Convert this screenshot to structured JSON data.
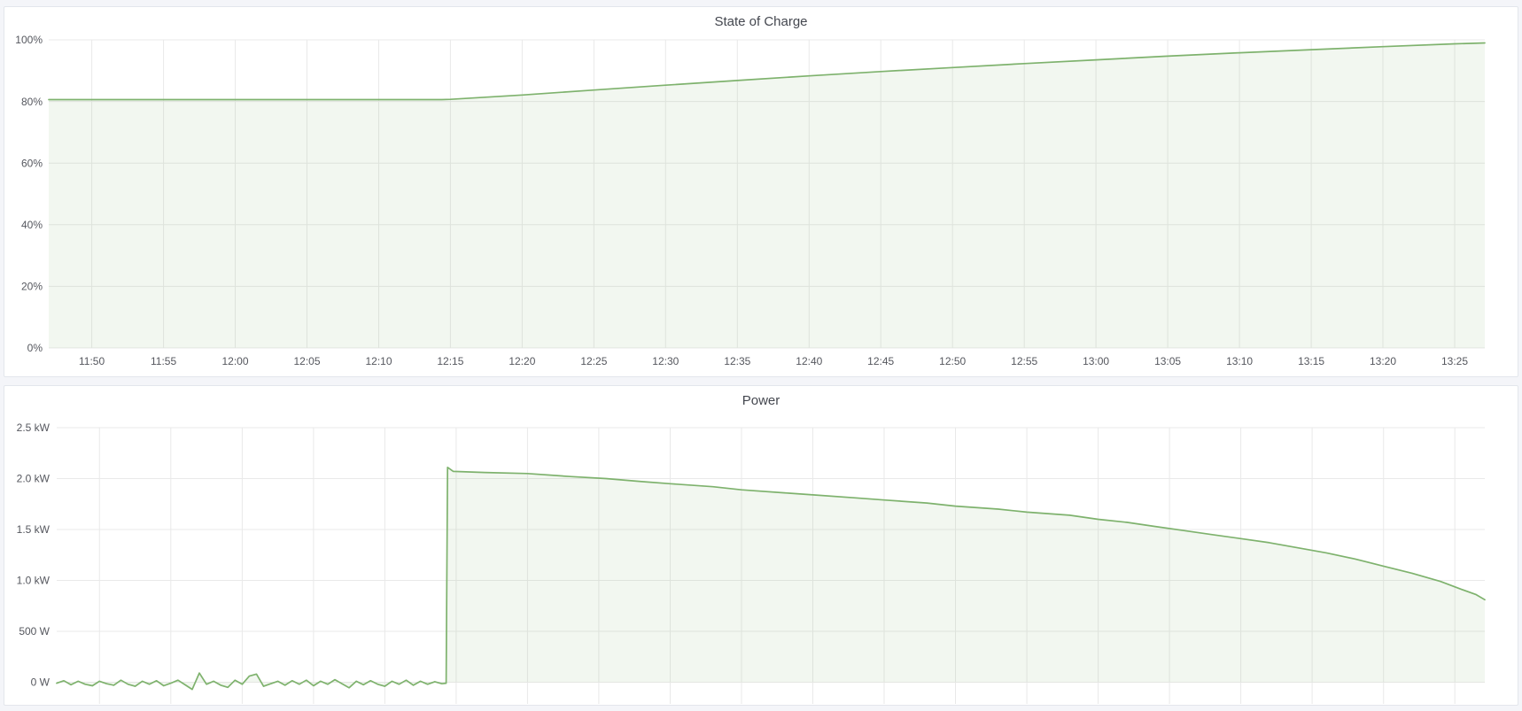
{
  "colors": {
    "series": "#7eb26d",
    "grid": "#e9e9e9",
    "tick_text": "#55575e",
    "title_text": "#44474f",
    "panel_bg": "#ffffff",
    "page_bg": "#f4f5f9",
    "panel_border": "#e3e6ec"
  },
  "chart_data": [
    {
      "type": "area",
      "title": "State of Charge",
      "xlabel": "",
      "ylabel": "",
      "unit": "%",
      "legend": "hidden",
      "grid": "on",
      "time_start": "11:47",
      "time_end": "13:27",
      "t_domain": [
        0,
        100.1
      ],
      "ylim": [
        0,
        100
      ],
      "y_ticks": [
        [
          0,
          "0%"
        ],
        [
          20,
          "20%"
        ],
        [
          40,
          "40%"
        ],
        [
          60,
          "60%"
        ],
        [
          80,
          "80%"
        ],
        [
          100,
          "100%"
        ]
      ],
      "x_ticks": [
        [
          3,
          "11:50"
        ],
        [
          8,
          "11:55"
        ],
        [
          13,
          "12:00"
        ],
        [
          18,
          "12:05"
        ],
        [
          23,
          "12:10"
        ],
        [
          28,
          "12:15"
        ],
        [
          33,
          "12:20"
        ],
        [
          38,
          "12:25"
        ],
        [
          43,
          "12:30"
        ],
        [
          48,
          "12:35"
        ],
        [
          53,
          "12:40"
        ],
        [
          58,
          "12:45"
        ],
        [
          63,
          "12:50"
        ],
        [
          68,
          "12:55"
        ],
        [
          73,
          "13:00"
        ],
        [
          78,
          "13:05"
        ],
        [
          83,
          "13:10"
        ],
        [
          88,
          "13:15"
        ],
        [
          93,
          "13:20"
        ],
        [
          98,
          "13:25"
        ]
      ],
      "series": [
        {
          "name": "State of Charge",
          "points": [
            [
              0,
              80.6
            ],
            [
              5,
              80.6
            ],
            [
              10,
              80.6
            ],
            [
              15,
              80.6
            ],
            [
              20,
              80.6
            ],
            [
              25,
              80.6
            ],
            [
              27.4,
              80.6
            ],
            [
              28,
              80.7
            ],
            [
              33,
              82.1
            ],
            [
              38,
              83.7
            ],
            [
              43,
              85.3
            ],
            [
              48,
              86.8
            ],
            [
              53,
              88.3
            ],
            [
              58,
              89.7
            ],
            [
              63,
              91.0
            ],
            [
              68,
              92.3
            ],
            [
              73,
              93.5
            ],
            [
              78,
              94.7
            ],
            [
              83,
              95.8
            ],
            [
              88,
              96.8
            ],
            [
              93,
              97.8
            ],
            [
              98,
              98.7
            ],
            [
              100.1,
              99.0
            ]
          ]
        }
      ]
    },
    {
      "type": "area",
      "title": "Power",
      "xlabel": "",
      "ylabel": "",
      "unit": "W",
      "legend": "hidden",
      "grid": "on",
      "time_start": "11:47",
      "time_end": "13:27",
      "t_domain": [
        0,
        100.1
      ],
      "ylim": [
        -0.21,
        2.5
      ],
      "y_ticks": [
        [
          0,
          "0 W"
        ],
        [
          0.5,
          "500 W"
        ],
        [
          1,
          "1.0 kW"
        ],
        [
          1.5,
          "1.5 kW"
        ],
        [
          2,
          "2.0 kW"
        ],
        [
          2.5,
          "2.5 kW"
        ]
      ],
      "x_ticks": [
        [
          3,
          ""
        ],
        [
          8,
          ""
        ],
        [
          13,
          ""
        ],
        [
          18,
          ""
        ],
        [
          23,
          ""
        ],
        [
          28,
          ""
        ],
        [
          33,
          ""
        ],
        [
          38,
          ""
        ],
        [
          43,
          ""
        ],
        [
          48,
          ""
        ],
        [
          53,
          ""
        ],
        [
          58,
          ""
        ],
        [
          63,
          ""
        ],
        [
          68,
          ""
        ],
        [
          73,
          ""
        ],
        [
          78,
          ""
        ],
        [
          83,
          ""
        ],
        [
          88,
          ""
        ],
        [
          93,
          ""
        ],
        [
          98,
          ""
        ]
      ],
      "series": [
        {
          "name": "Power",
          "points": [
            [
              0,
              -0.01
            ],
            [
              0.5,
              0.015
            ],
            [
              1,
              -0.025
            ],
            [
              1.5,
              0.01
            ],
            [
              2,
              -0.02
            ],
            [
              2.5,
              -0.035
            ],
            [
              3,
              0.01
            ],
            [
              3.5,
              -0.015
            ],
            [
              4,
              -0.03
            ],
            [
              4.5,
              0.02
            ],
            [
              5,
              -0.02
            ],
            [
              5.5,
              -0.04
            ],
            [
              6,
              0.01
            ],
            [
              6.5,
              -0.02
            ],
            [
              7,
              0.015
            ],
            [
              7.5,
              -0.035
            ],
            [
              8,
              -0.01
            ],
            [
              8.5,
              0.02
            ],
            [
              9,
              -0.025
            ],
            [
              9.5,
              -0.07
            ],
            [
              10,
              0.09
            ],
            [
              10.5,
              -0.02
            ],
            [
              11,
              0.01
            ],
            [
              11.5,
              -0.03
            ],
            [
              12,
              -0.05
            ],
            [
              12.5,
              0.02
            ],
            [
              13,
              -0.02
            ],
            [
              13.5,
              0.06
            ],
            [
              14,
              0.08
            ],
            [
              14.5,
              -0.04
            ],
            [
              15,
              -0.015
            ],
            [
              15.5,
              0.01
            ],
            [
              16,
              -0.03
            ],
            [
              16.5,
              0.015
            ],
            [
              17,
              -0.02
            ],
            [
              17.5,
              0.02
            ],
            [
              18,
              -0.035
            ],
            [
              18.5,
              0.01
            ],
            [
              19,
              -0.02
            ],
            [
              19.5,
              0.025
            ],
            [
              20,
              -0.015
            ],
            [
              20.5,
              -0.055
            ],
            [
              21,
              0.01
            ],
            [
              21.5,
              -0.025
            ],
            [
              22,
              0.015
            ],
            [
              22.5,
              -0.02
            ],
            [
              23,
              -0.04
            ],
            [
              23.5,
              0.01
            ],
            [
              24,
              -0.02
            ],
            [
              24.5,
              0.02
            ],
            [
              25,
              -0.03
            ],
            [
              25.5,
              0.01
            ],
            [
              26,
              -0.02
            ],
            [
              26.5,
              0.005
            ],
            [
              27,
              -0.015
            ],
            [
              27.3,
              -0.01
            ],
            [
              27.4,
              2.11
            ],
            [
              27.8,
              2.07
            ],
            [
              30,
              2.06
            ],
            [
              33,
              2.05
            ],
            [
              36,
              2.02
            ],
            [
              38.5,
              2.0
            ],
            [
              41,
              1.97
            ],
            [
              43,
              1.95
            ],
            [
              46,
              1.92
            ],
            [
              48,
              1.89
            ],
            [
              51,
              1.86
            ],
            [
              53,
              1.84
            ],
            [
              56,
              1.81
            ],
            [
              58,
              1.79
            ],
            [
              61,
              1.76
            ],
            [
              63,
              1.73
            ],
            [
              66,
              1.7
            ],
            [
              68,
              1.67
            ],
            [
              71,
              1.64
            ],
            [
              73,
              1.6
            ],
            [
              75,
              1.57
            ],
            [
              77,
              1.53
            ],
            [
              79,
              1.49
            ],
            [
              81,
              1.45
            ],
            [
              83,
              1.41
            ],
            [
              85,
              1.37
            ],
            [
              87,
              1.32
            ],
            [
              89,
              1.27
            ],
            [
              91,
              1.21
            ],
            [
              93,
              1.14
            ],
            [
              95,
              1.07
            ],
            [
              97,
              0.99
            ],
            [
              98.5,
              0.91
            ],
            [
              99.5,
              0.86
            ],
            [
              100.1,
              0.81
            ]
          ]
        }
      ]
    }
  ]
}
